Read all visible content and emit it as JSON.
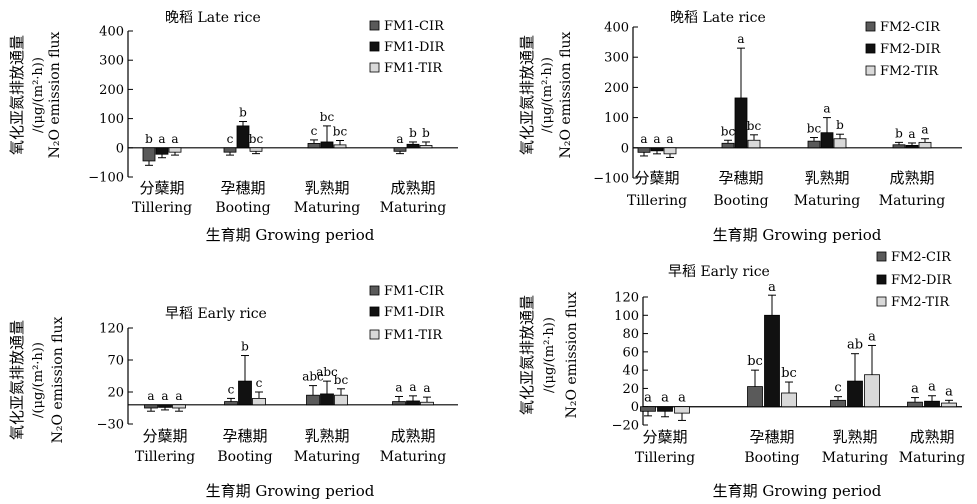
{
  "figure": {
    "colors": {
      "CIR": "#5a5a5a",
      "DIR": "#111111",
      "TIR": "#d9d9d9"
    }
  },
  "chart_data": [
    {
      "type": "bar",
      "title": "晚稻  Late rice",
      "xlabel": "生育期  Growing period",
      "ylabel_cn": "氧化亚氮排放通量",
      "ylabel_unit": "/(μg/(m²·h))",
      "ylabel_en": "N₂O emission flux",
      "ylim": [
        -100,
        400
      ],
      "yticks": [
        "400",
        "300",
        "200",
        "100",
        "0",
        "−100"
      ],
      "ytick_values": [
        400,
        300,
        200,
        100,
        0,
        -100
      ],
      "categories_cn": [
        "分蘖期",
        "孕穗期",
        "乳熟期",
        "成熟期"
      ],
      "categories_en": [
        "Tillering",
        "Booting",
        "Maturing",
        "Maturing"
      ],
      "legend_position": "top-right",
      "series": [
        {
          "name": "FM1-CIR",
          "key": "CIR",
          "values": [
            -45,
            -15,
            15,
            -12
          ],
          "errors": [
            15,
            10,
            12,
            8
          ],
          "sig": [
            "b",
            "c",
            "c",
            "a"
          ]
        },
        {
          "name": "FM1-DIR",
          "key": "DIR",
          "values": [
            -22,
            75,
            20,
            12
          ],
          "errors": [
            12,
            15,
            55,
            8
          ],
          "sig": [
            "a",
            "b",
            "bc",
            "b"
          ]
        },
        {
          "name": "FM1-TIR",
          "key": "TIR",
          "values": [
            -15,
            -12,
            10,
            8
          ],
          "errors": [
            10,
            8,
            15,
            12
          ],
          "sig": [
            "a",
            "bc",
            "bc",
            "b"
          ]
        }
      ]
    },
    {
      "type": "bar",
      "title": "晚稻  Late rice",
      "xlabel": "生育期  Growing period",
      "ylabel_cn": "氧化亚氮排放通量",
      "ylabel_unit": "/(μg/(m²·h))",
      "ylabel_en": "N₂O emission flux",
      "ylim": [
        -100,
        400
      ],
      "yticks": [
        "400",
        "300",
        "200",
        "100",
        "0",
        "−100"
      ],
      "ytick_values": [
        400,
        300,
        200,
        100,
        0,
        -100
      ],
      "categories_cn": [
        "分蘖期",
        "孕穗期",
        "乳熟期",
        "成熟期"
      ],
      "categories_en": [
        "Tillering",
        "Booting",
        "Maturing",
        "Maturing"
      ],
      "legend_position": "top-right",
      "series": [
        {
          "name": "FM2-CIR",
          "key": "CIR",
          "values": [
            -15,
            15,
            22,
            10
          ],
          "errors": [
            12,
            10,
            12,
            8
          ],
          "sig": [
            "a",
            "bc",
            "bc",
            "b"
          ]
        },
        {
          "name": "FM2-DIR",
          "key": "DIR",
          "values": [
            -10,
            165,
            50,
            8
          ],
          "errors": [
            10,
            165,
            50,
            8
          ],
          "sig": [
            "a",
            "a",
            "a",
            "a"
          ]
        },
        {
          "name": "FM2-TIR",
          "key": "TIR",
          "values": [
            -20,
            25,
            30,
            18
          ],
          "errors": [
            12,
            18,
            15,
            12
          ],
          "sig": [
            "a",
            "bc",
            "b",
            "a"
          ]
        }
      ]
    },
    {
      "type": "bar",
      "title": "早稻  Early rice",
      "xlabel": "生育期  Growing period",
      "ylabel_cn": "氧化亚氮排放通量",
      "ylabel_unit": "/(μg/(m²·h))",
      "ylabel_en": "N₂O emission flux",
      "ylim": [
        -30,
        120
      ],
      "yticks": [
        "120",
        "70",
        "20",
        "−30"
      ],
      "ytick_values": [
        120,
        70,
        20,
        -30
      ],
      "categories_cn": [
        "分蘖期",
        "孕穗期",
        "乳熟期",
        "成熟期"
      ],
      "categories_en": [
        "Tillering",
        "Booting",
        "Maturing",
        "Maturing"
      ],
      "legend_position": "top-right",
      "series": [
        {
          "name": "FM1-CIR",
          "key": "CIR",
          "values": [
            -5,
            5,
            15,
            5
          ],
          "errors": [
            5,
            5,
            15,
            8
          ],
          "sig": [
            "a",
            "c",
            "abc",
            "a"
          ]
        },
        {
          "name": "FM1-DIR",
          "key": "DIR",
          "values": [
            -4,
            37,
            17,
            6
          ],
          "errors": [
            4,
            40,
            20,
            8
          ],
          "sig": [
            "a",
            "b",
            "abc",
            "a"
          ]
        },
        {
          "name": "FM1-TIR",
          "key": "TIR",
          "values": [
            -5,
            10,
            15,
            4
          ],
          "errors": [
            5,
            10,
            10,
            8
          ],
          "sig": [
            "a",
            "c",
            "bc",
            "a"
          ]
        }
      ]
    },
    {
      "type": "bar",
      "title": "早稻  Early rice",
      "xlabel": "生育期  Growing period",
      "ylabel_cn": "氧化亚氮排放通量",
      "ylabel_unit": "/(μg/(m²·h))",
      "ylabel_en": "N₂O emission flux",
      "ylim": [
        -20,
        120
      ],
      "yticks": [
        "120",
        "100",
        "80",
        "60",
        "40",
        "20",
        "0",
        "−20"
      ],
      "ytick_values": [
        120,
        100,
        80,
        60,
        40,
        20,
        0,
        -20
      ],
      "categories_cn": [
        "分蘖期",
        "孕穗期",
        "乳熟期",
        "成熟期"
      ],
      "categories_en": [
        "Tillering",
        "Booting",
        "Maturing",
        "Maturing"
      ],
      "legend_position": "top-right",
      "series": [
        {
          "name": "FM2-CIR",
          "key": "CIR",
          "values": [
            -5,
            22,
            7,
            5
          ],
          "errors": [
            5,
            18,
            4,
            5
          ],
          "sig": [
            "a",
            "bc",
            "c",
            "a"
          ]
        },
        {
          "name": "FM2-DIR",
          "key": "DIR",
          "values": [
            -5,
            100,
            28,
            6
          ],
          "errors": [
            6,
            22,
            30,
            6
          ],
          "sig": [
            "a",
            "a",
            "ab",
            "a"
          ]
        },
        {
          "name": "FM2-TIR",
          "key": "TIR",
          "values": [
            -7,
            15,
            35,
            4
          ],
          "errors": [
            8,
            12,
            32,
            3
          ],
          "sig": [
            "a",
            "bc",
            "a",
            "a"
          ]
        }
      ]
    }
  ]
}
